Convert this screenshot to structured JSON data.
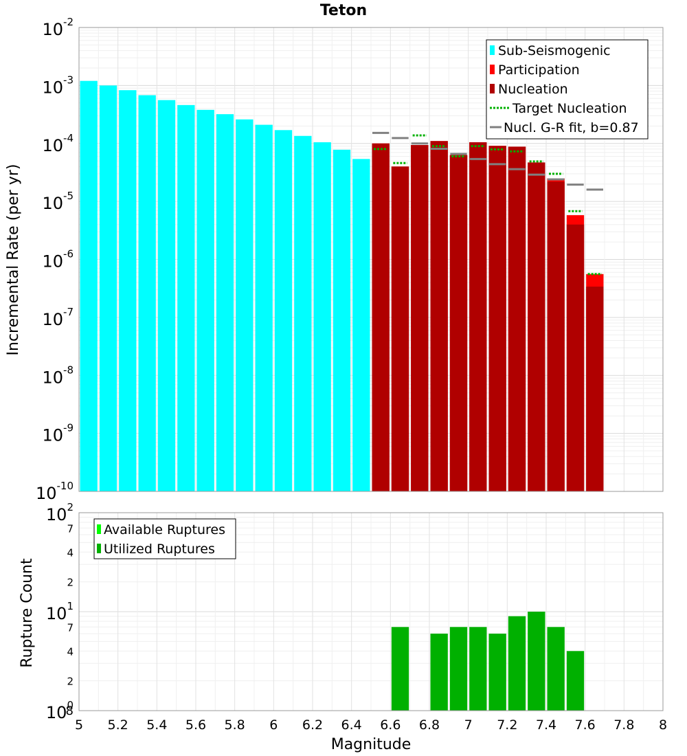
{
  "chart_data": [
    {
      "type": "bar",
      "title": "Teton",
      "ylabel": "Incremental Rate (per yr)",
      "yscale": "log",
      "xlim": [
        5,
        8
      ],
      "ylim": [
        1e-10,
        0.01
      ],
      "y_tick_labels": [
        {
          "base": "10",
          "exp": "-10"
        },
        {
          "base": "10",
          "exp": "-9"
        },
        {
          "base": "10",
          "exp": "-8"
        },
        {
          "base": "10",
          "exp": "-7"
        },
        {
          "base": "10",
          "exp": "-6"
        },
        {
          "base": "10",
          "exp": "-5"
        },
        {
          "base": "10",
          "exp": "-4"
        },
        {
          "base": "10",
          "exp": "-3"
        },
        {
          "base": "10",
          "exp": "-2"
        }
      ],
      "legend": {
        "placement": "top-right",
        "items": [
          {
            "label": "Sub-Seismogenic",
            "color": "#00ffff",
            "kind": "bar"
          },
          {
            "label": "Participation",
            "color": "#ff0000",
            "kind": "bar"
          },
          {
            "label": "Nucleation",
            "color": "#b00000",
            "kind": "bar"
          },
          {
            "label": "Target Nucleation",
            "color": "#00b000",
            "kind": "dotted"
          },
          {
            "label": "Nucl. G-R fit, b=0.87",
            "color": "#808080",
            "kind": "line"
          }
        ]
      },
      "series": [
        {
          "name": "Sub-Seismogenic",
          "color": "#00ffff",
          "x": [
            5.05,
            5.15,
            5.25,
            5.35,
            5.45,
            5.55,
            5.65,
            5.75,
            5.85,
            5.95,
            6.05,
            6.15,
            6.25,
            6.35,
            6.45
          ],
          "values": [
            0.0012,
            0.001,
            0.00083,
            0.00068,
            0.00056,
            0.00046,
            0.00038,
            0.00032,
            0.00026,
            0.00021,
            0.00017,
            0.000135,
            0.000105,
            7.8e-05,
            5.4e-05
          ]
        },
        {
          "name": "Participation",
          "color": "#ff0000",
          "x": [
            6.55,
            6.65,
            6.75,
            6.85,
            6.95,
            7.05,
            7.15,
            7.25,
            7.35,
            7.45,
            7.55,
            7.65
          ],
          "values": [
            0.0001,
            4e-05,
            9.4e-05,
            0.00011,
            6.3e-05,
            0.000105,
            9.1e-05,
            8.8e-05,
            4.7e-05,
            2.5e-05,
            5.8e-06,
            5.6e-07
          ]
        },
        {
          "name": "Nucleation",
          "color": "#b00000",
          "x": [
            6.55,
            6.65,
            6.75,
            6.85,
            6.95,
            7.05,
            7.15,
            7.25,
            7.35,
            7.45,
            7.55,
            7.65
          ],
          "values": [
            0.0001,
            4e-05,
            9.4e-05,
            0.00011,
            6.3e-05,
            0.000105,
            9.1e-05,
            8.8e-05,
            4.7e-05,
            2.2e-05,
            4e-06,
            3.4e-07
          ]
        },
        {
          "name": "Target Nucleation",
          "color": "#00b000",
          "x": [
            6.55,
            6.65,
            6.75,
            6.85,
            6.95,
            7.05,
            7.15,
            7.25,
            7.35,
            7.45,
            7.55,
            7.65
          ],
          "values": [
            8e-05,
            4.6e-05,
            0.000138,
            9e-05,
            6e-05,
            9e-05,
            7.9e-05,
            7.3e-05,
            4.9e-05,
            3e-05,
            6.8e-06,
            5.6e-07
          ]
        },
        {
          "name": "Nucl. G-R fit, b=0.87",
          "color": "#808080",
          "x": [
            6.55,
            6.65,
            6.75,
            6.85,
            6.95,
            7.05,
            7.15,
            7.25,
            7.35,
            7.45,
            7.55,
            7.65
          ],
          "values": [
            0.000152,
            0.000124,
            0.0001,
            8.1e-05,
            6.6e-05,
            5.4e-05,
            4.4e-05,
            3.6e-05,
            2.9e-05,
            2.4e-05,
            1.95e-05,
            1.6e-05
          ]
        }
      ]
    },
    {
      "type": "bar",
      "xlabel": "Magnitude",
      "ylabel": "Rupture Count",
      "yscale": "log",
      "xlim": [
        5,
        8
      ],
      "ylim": [
        1,
        100
      ],
      "x_ticks": [
        "5",
        "5.2",
        "5.4",
        "5.6",
        "5.8",
        "6",
        "6.2",
        "6.4",
        "6.6",
        "6.8",
        "7",
        "7.2",
        "7.4",
        "7.6",
        "7.8",
        "8"
      ],
      "y_tick_labels": {
        "major": [
          {
            "base": "10",
            "exp": "0"
          },
          {
            "base": "10",
            "exp": "1"
          },
          {
            "base": "10",
            "exp": "2"
          }
        ],
        "minor_values": [
          2,
          4,
          7,
          20,
          40,
          70
        ],
        "minor_text": [
          "2",
          "4",
          "7",
          "2",
          "4",
          "7"
        ],
        "corner": "8"
      },
      "legend": {
        "placement": "top-left",
        "items": [
          {
            "label": "Available Ruptures",
            "color": "#00ff00"
          },
          {
            "label": "Utilized Ruptures",
            "color": "#00b000"
          }
        ]
      },
      "series": [
        {
          "name": "Utilized Ruptures",
          "color": "#00b000",
          "x": [
            6.65,
            6.85,
            6.95,
            7.05,
            7.15,
            7.25,
            7.35,
            7.45,
            7.55
          ],
          "values": [
            7,
            6,
            7,
            7,
            6,
            9,
            10,
            7,
            4
          ]
        }
      ]
    }
  ]
}
